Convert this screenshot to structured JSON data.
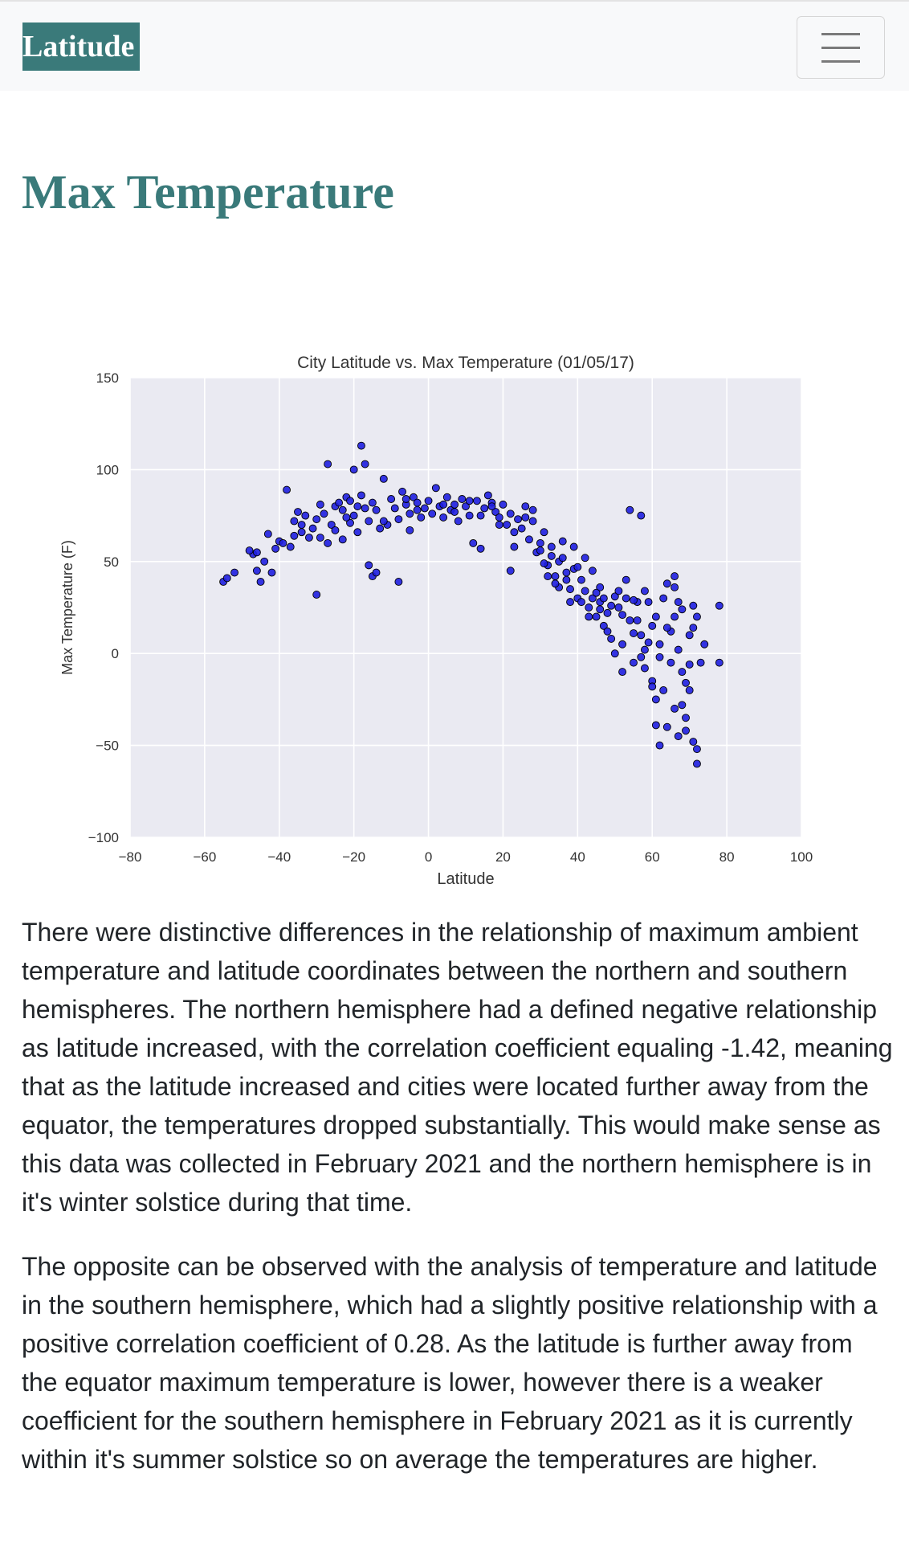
{
  "nav": {
    "brand": "Latitude",
    "menu_icon": "hamburger-menu-icon"
  },
  "page": {
    "title": "Max Temperature"
  },
  "colors": {
    "accent": "#3a7a7a",
    "plot_bg": "#eaeaf2",
    "marker": "#1f1fe0"
  },
  "chart_data": {
    "type": "scatter",
    "title": "City Latitude vs. Max Temperature (01/05/17)",
    "xlabel": "Latitude",
    "ylabel": "Max Temperature (F)",
    "xlim": [
      -80,
      100
    ],
    "ylim": [
      -100,
      150
    ],
    "xticks": [
      "−80",
      "−60",
      "−40",
      "−20",
      "0",
      "20",
      "40",
      "60",
      "80",
      "100"
    ],
    "yticks": [
      "150",
      "100",
      "50",
      "0",
      "−50",
      "−100"
    ],
    "grid": true,
    "points": [
      [
        -55,
        39
      ],
      [
        -54,
        41
      ],
      [
        -52,
        44
      ],
      [
        -47,
        54
      ],
      [
        -46,
        55
      ],
      [
        -46,
        45
      ],
      [
        -45,
        39
      ],
      [
        -43,
        65
      ],
      [
        -42,
        44
      ],
      [
        -41,
        57
      ],
      [
        -40,
        61
      ],
      [
        -39,
        60
      ],
      [
        -38,
        89
      ],
      [
        -37,
        58
      ],
      [
        -36,
        72
      ],
      [
        -35,
        77
      ],
      [
        -34,
        66
      ],
      [
        -34,
        70
      ],
      [
        -33,
        75
      ],
      [
        -32,
        63
      ],
      [
        -31,
        68
      ],
      [
        -30,
        73
      ],
      [
        -30,
        32
      ],
      [
        -29,
        63
      ],
      [
        -28,
        76
      ],
      [
        -27,
        60
      ],
      [
        -27,
        103
      ],
      [
        -26,
        70
      ],
      [
        -25,
        80
      ],
      [
        -25,
        67
      ],
      [
        -24,
        82
      ],
      [
        -23,
        78
      ],
      [
        -23,
        62
      ],
      [
        -22,
        85
      ],
      [
        -21,
        71
      ],
      [
        -21,
        83
      ],
      [
        -20,
        100
      ],
      [
        -20,
        75
      ],
      [
        -19,
        80
      ],
      [
        -19,
        66
      ],
      [
        -18,
        86
      ],
      [
        -18,
        113
      ],
      [
        -17,
        79
      ],
      [
        -17,
        103
      ],
      [
        -16,
        48
      ],
      [
        -16,
        72
      ],
      [
        -15,
        42
      ],
      [
        -15,
        82
      ],
      [
        -14,
        44
      ],
      [
        -14,
        78
      ],
      [
        -13,
        68
      ],
      [
        -12,
        95
      ],
      [
        -11,
        70
      ],
      [
        -10,
        84
      ],
      [
        -9,
        79
      ],
      [
        -8,
        73
      ],
      [
        -8,
        39
      ],
      [
        -7,
        88
      ],
      [
        -6,
        81
      ],
      [
        -5,
        76
      ],
      [
        -5,
        67
      ],
      [
        -4,
        85
      ],
      [
        -3,
        82
      ],
      [
        -2,
        74
      ],
      [
        -1,
        79
      ],
      [
        0,
        83
      ],
      [
        1,
        76
      ],
      [
        2,
        90
      ],
      [
        3,
        80
      ],
      [
        4,
        74
      ],
      [
        5,
        85
      ],
      [
        6,
        78
      ],
      [
        7,
        81
      ],
      [
        8,
        72
      ],
      [
        9,
        84
      ],
      [
        10,
        80
      ],
      [
        11,
        75
      ],
      [
        12,
        60
      ],
      [
        13,
        83
      ],
      [
        14,
        57
      ],
      [
        15,
        79
      ],
      [
        16,
        86
      ],
      [
        17,
        82
      ],
      [
        18,
        77
      ],
      [
        19,
        74
      ],
      [
        20,
        81
      ],
      [
        21,
        70
      ],
      [
        22,
        76
      ],
      [
        22,
        45
      ],
      [
        23,
        58
      ],
      [
        24,
        73
      ],
      [
        25,
        68
      ],
      [
        26,
        80
      ],
      [
        27,
        62
      ],
      [
        28,
        72
      ],
      [
        29,
        55
      ],
      [
        30,
        60
      ],
      [
        31,
        66
      ],
      [
        32,
        48
      ],
      [
        33,
        53
      ],
      [
        34,
        42
      ],
      [
        35,
        50
      ],
      [
        35,
        36
      ],
      [
        36,
        61
      ],
      [
        37,
        44
      ],
      [
        38,
        28
      ],
      [
        39,
        46
      ],
      [
        40,
        30
      ],
      [
        41,
        40
      ],
      [
        42,
        34
      ],
      [
        43,
        25
      ],
      [
        44,
        30
      ],
      [
        45,
        20
      ],
      [
        46,
        28
      ],
      [
        46,
        36
      ],
      [
        47,
        15
      ],
      [
        48,
        22
      ],
      [
        49,
        8
      ],
      [
        50,
        31
      ],
      [
        50,
        0
      ],
      [
        51,
        25
      ],
      [
        52,
        5
      ],
      [
        53,
        30
      ],
      [
        54,
        18
      ],
      [
        54,
        78
      ],
      [
        55,
        -5
      ],
      [
        56,
        28
      ],
      [
        57,
        10
      ],
      [
        57,
        75
      ],
      [
        58,
        2
      ],
      [
        58,
        -8
      ],
      [
        59,
        28
      ],
      [
        60,
        15
      ],
      [
        61,
        -25
      ],
      [
        61,
        -39
      ],
      [
        62,
        5
      ],
      [
        62,
        -50
      ],
      [
        63,
        -20
      ],
      [
        64,
        38
      ],
      [
        65,
        12
      ],
      [
        66,
        -30
      ],
      [
        66,
        42
      ],
      [
        67,
        -45
      ],
      [
        67,
        2
      ],
      [
        68,
        24
      ],
      [
        68,
        -10
      ],
      [
        69,
        -35
      ],
      [
        70,
        -20
      ],
      [
        70,
        10
      ],
      [
        71,
        -48
      ],
      [
        71,
        26
      ],
      [
        72,
        -60
      ],
      [
        72,
        20
      ],
      [
        73,
        -5
      ],
      [
        74,
        5
      ],
      [
        78,
        -5
      ],
      [
        78,
        26
      ],
      [
        -44,
        50
      ],
      [
        -48,
        56
      ],
      [
        -36,
        64
      ],
      [
        -29,
        81
      ],
      [
        -22,
        74
      ],
      [
        -12,
        72
      ],
      [
        -6,
        84
      ],
      [
        -3,
        78
      ],
      [
        4,
        81
      ],
      [
        7,
        77
      ],
      [
        11,
        83
      ],
      [
        14,
        75
      ],
      [
        17,
        80
      ],
      [
        19,
        70
      ],
      [
        23,
        66
      ],
      [
        26,
        74
      ],
      [
        28,
        78
      ],
      [
        30,
        56
      ],
      [
        31,
        49
      ],
      [
        32,
        42
      ],
      [
        33,
        58
      ],
      [
        34,
        38
      ],
      [
        36,
        52
      ],
      [
        37,
        40
      ],
      [
        38,
        35
      ],
      [
        39,
        58
      ],
      [
        40,
        47
      ],
      [
        41,
        28
      ],
      [
        42,
        52
      ],
      [
        43,
        20
      ],
      [
        44,
        45
      ],
      [
        45,
        33
      ],
      [
        46,
        24
      ],
      [
        47,
        30
      ],
      [
        48,
        12
      ],
      [
        49,
        26
      ],
      [
        51,
        34
      ],
      [
        52,
        21
      ],
      [
        53,
        40
      ],
      [
        55,
        29
      ],
      [
        56,
        18
      ],
      [
        57,
        -2
      ],
      [
        58,
        34
      ],
      [
        59,
        6
      ],
      [
        60,
        -15
      ],
      [
        61,
        20
      ],
      [
        62,
        -2
      ],
      [
        63,
        30
      ],
      [
        64,
        -40
      ],
      [
        65,
        -5
      ],
      [
        66,
        20
      ],
      [
        67,
        28
      ],
      [
        68,
        -28
      ],
      [
        69,
        -42
      ],
      [
        70,
        -6
      ],
      [
        71,
        14
      ],
      [
        72,
        -52
      ],
      [
        52,
        -10
      ],
      [
        55,
        11
      ],
      [
        60,
        -18
      ],
      [
        64,
        14
      ],
      [
        66,
        36
      ],
      [
        69,
        -16
      ]
    ]
  },
  "text": {
    "para1": "There were distinctive differences in the relationship of maximum ambient temperature and latitude coordinates between the northern and southern hemispheres. The northern hemisphere had a defined negative relationship as latitude increased, with the correlation coefficient equaling -1.42, meaning that as the latitude increased and cities were located further away from the equator, the temperatures dropped substantially. This would make sense as this data was collected in February 2021 and the northern hemisphere is in it's winter solstice during that time.",
    "para2": "The opposite can be observed with the analysis of temperature and latitude in the southern hemisphere, which had a slightly positive relationship with a positive correlation coefficient of 0.28. As the latitude is further away from the equator maximum temperature is lower, however there is a weaker coefficient for the southern hemisphere in February 2021 as it is currently within it's summer solstice so on average the temperatures are higher."
  }
}
